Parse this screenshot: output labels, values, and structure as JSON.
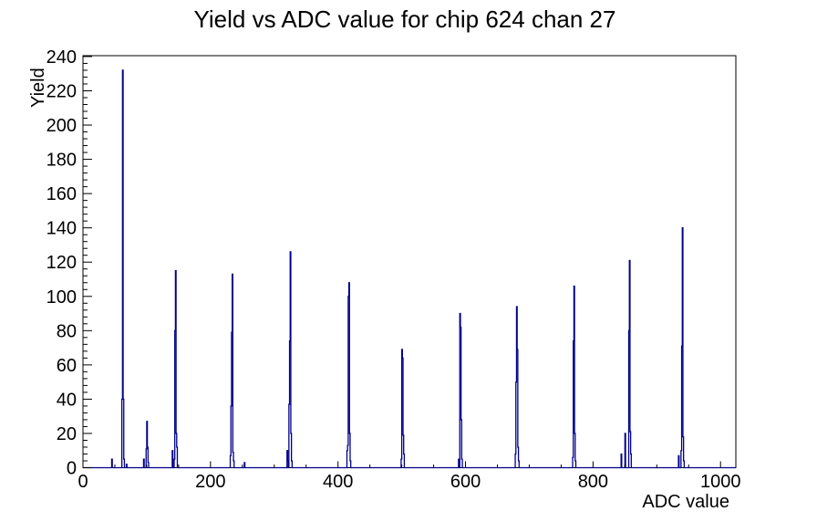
{
  "title": "Yield vs ADC value for chip 624 chan 27",
  "chart_data": {
    "type": "bar",
    "title": "Yield vs ADC value for chip 624 chan 27",
    "xlabel": "ADC value",
    "ylabel": "Yield",
    "grid": false,
    "legend": "none",
    "line_color": "#00008b",
    "frame_color": "#000000",
    "x_axis": {
      "min": 0,
      "max": 1024,
      "major_tick_step": 200,
      "minor_tick_step": 50,
      "tick_labels": [
        "0",
        "200",
        "400",
        "600",
        "800",
        "1000"
      ]
    },
    "y_axis": {
      "min": 0,
      "max": 240.5,
      "major_tick_step": 20,
      "minor_tick_step": 4,
      "tick_labels": [
        "0",
        "20",
        "40",
        "60",
        "80",
        "100",
        "120",
        "140",
        "160",
        "180",
        "200",
        "220",
        "240"
      ]
    },
    "bins": [
      [
        45,
        5
      ],
      [
        61,
        40
      ],
      [
        62,
        232
      ],
      [
        63,
        40
      ],
      [
        64,
        5
      ],
      [
        68,
        2
      ],
      [
        95,
        5
      ],
      [
        99,
        11
      ],
      [
        100,
        27
      ],
      [
        101,
        12
      ],
      [
        102,
        3
      ],
      [
        140,
        10
      ],
      [
        143,
        5
      ],
      [
        144,
        80
      ],
      [
        145,
        115
      ],
      [
        146,
        20
      ],
      [
        147,
        12
      ],
      [
        231,
        7
      ],
      [
        232,
        36
      ],
      [
        233,
        79
      ],
      [
        234,
        113
      ],
      [
        235,
        9
      ],
      [
        236,
        4
      ],
      [
        253,
        3
      ],
      [
        320,
        10
      ],
      [
        321,
        4
      ],
      [
        323,
        37
      ],
      [
        324,
        74
      ],
      [
        325,
        126
      ],
      [
        326,
        20
      ],
      [
        327,
        4
      ],
      [
        414,
        10
      ],
      [
        415,
        13
      ],
      [
        416,
        100
      ],
      [
        417,
        108
      ],
      [
        418,
        20
      ],
      [
        419,
        4
      ],
      [
        499,
        5
      ],
      [
        500,
        69
      ],
      [
        501,
        64
      ],
      [
        502,
        19
      ],
      [
        503,
        8
      ],
      [
        589,
        5
      ],
      [
        591,
        90
      ],
      [
        592,
        82
      ],
      [
        593,
        28
      ],
      [
        594,
        5
      ],
      [
        678,
        8
      ],
      [
        679,
        50
      ],
      [
        680,
        94
      ],
      [
        681,
        69
      ],
      [
        682,
        12
      ],
      [
        683,
        4
      ],
      [
        768,
        6
      ],
      [
        769,
        74
      ],
      [
        770,
        106
      ],
      [
        771,
        20
      ],
      [
        772,
        4
      ],
      [
        844,
        8
      ],
      [
        850,
        20
      ],
      [
        856,
        80
      ],
      [
        857,
        121
      ],
      [
        858,
        21
      ],
      [
        859,
        8
      ],
      [
        934,
        7
      ],
      [
        938,
        10
      ],
      [
        939,
        71
      ],
      [
        940,
        140
      ],
      [
        941,
        18
      ],
      [
        942,
        4
      ]
    ]
  }
}
